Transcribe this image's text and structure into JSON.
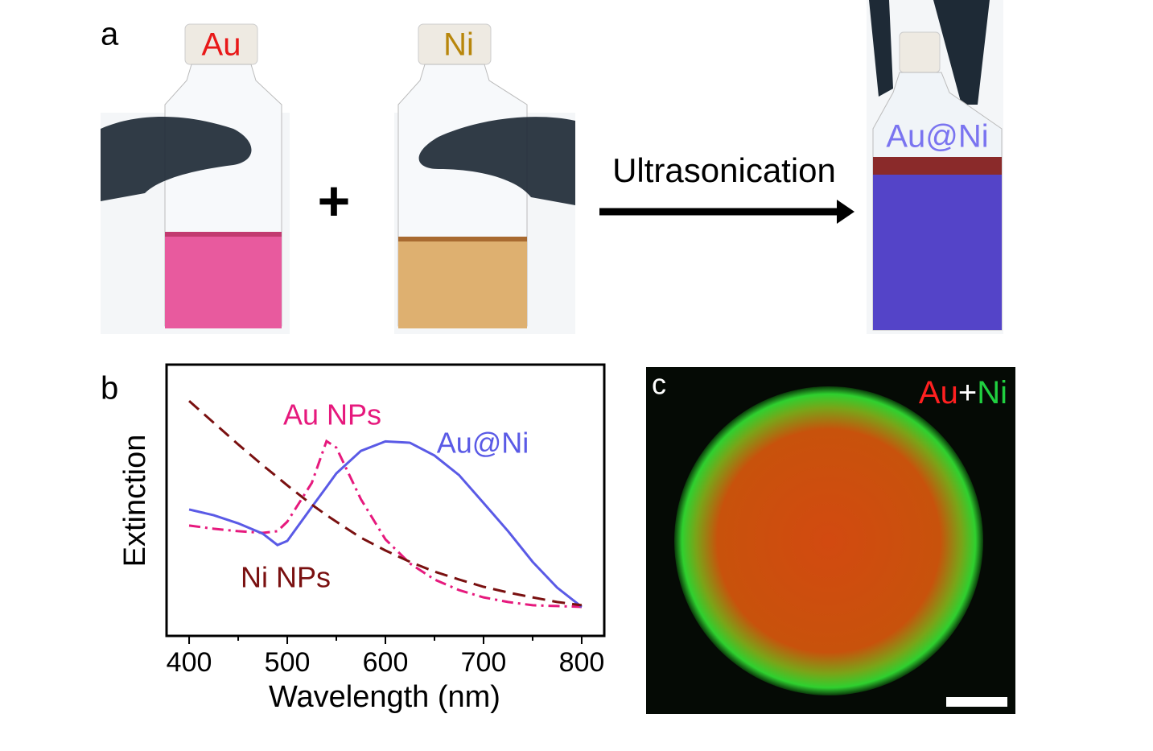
{
  "panel_a": {
    "label": "a",
    "bottle_1": "Au",
    "plus": "+",
    "bottle_2": "Ni",
    "process": "Ultrasonication",
    "product": "Au@Ni"
  },
  "chart_data": {
    "type": "line",
    "label": "b",
    "x_label": "Wavelength (nm)",
    "y_label": "Extinction",
    "x": [
      400,
      425,
      450,
      475,
      490,
      500,
      525,
      540,
      550,
      575,
      600,
      625,
      650,
      675,
      700,
      725,
      750,
      775,
      800
    ],
    "series": [
      {
        "name": "Au NPs",
        "color": "#e6197d",
        "dash": "dashdot",
        "values": [
          0.407,
          0.395,
          0.386,
          0.38,
          0.386,
          0.421,
          0.564,
          0.718,
          0.694,
          0.504,
          0.356,
          0.267,
          0.208,
          0.169,
          0.142,
          0.125,
          0.113,
          0.11,
          0.107
        ]
      },
      {
        "name": "Au@Ni",
        "color": "#5a5ae6",
        "dash": "solid",
        "values": [
          0.466,
          0.445,
          0.415,
          0.377,
          0.335,
          0.35,
          0.475,
          0.549,
          0.599,
          0.682,
          0.717,
          0.712,
          0.665,
          0.593,
          0.49,
          0.386,
          0.273,
          0.178,
          0.107
        ]
      },
      {
        "name": "Ni NPs",
        "color": "#7a1010",
        "dash": "dashed",
        "values": [
          0.866,
          0.786,
          0.706,
          0.629,
          0.585,
          0.555,
          0.484,
          0.445,
          0.421,
          0.362,
          0.315,
          0.273,
          0.237,
          0.208,
          0.181,
          0.16,
          0.142,
          0.125,
          0.113
        ]
      }
    ],
    "xlim": [
      377,
      823
    ],
    "ylim": [
      0,
      1
    ],
    "xticks": [
      400,
      500,
      600,
      700,
      800
    ],
    "xminorticks": [
      450,
      550,
      650,
      750
    ],
    "grid": false
  },
  "panel_c": {
    "label": "c",
    "legend_au": "Au",
    "legend_plus": "+",
    "legend_ni": "Ni"
  }
}
